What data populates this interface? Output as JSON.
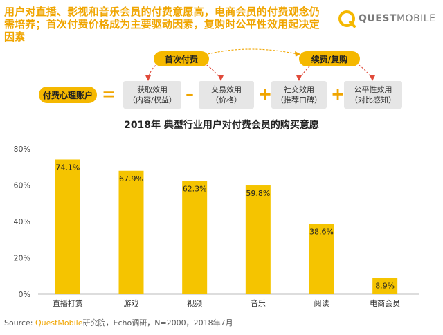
{
  "headline": "用户对直播、影视和音乐会员的付费意愿高，电商会员的付费观念仍需培养；首次付费价格成为主要驱动因素，复购时公平性效用起决定因素",
  "logo": {
    "brand_bold": "QUEST",
    "brand_rest": "MOBILE"
  },
  "equation": {
    "label": "付费心理账户",
    "first_pay": "首次付费",
    "renew": "续费/复购",
    "items": [
      {
        "line1": "获取效用",
        "line2": "（内容/权益）"
      },
      {
        "line1": "交易效用",
        "line2": "（价格）"
      },
      {
        "line1": "社交效用",
        "line2": "（推荐口碑）"
      },
      {
        "line1": "公平性效用",
        "line2": "（对比感知）"
      }
    ],
    "ops": [
      "=",
      "–",
      "+",
      "+"
    ]
  },
  "chart_data": {
    "type": "bar",
    "title": "2018年 典型行业用户对付费会员的购买意愿",
    "categories": [
      "直播打赏",
      "游戏",
      "视频",
      "音乐",
      "阅读",
      "电商会员"
    ],
    "values": [
      74.1,
      67.9,
      62.3,
      59.8,
      38.6,
      8.9
    ],
    "value_labels": [
      "74.1%",
      "67.9%",
      "62.3%",
      "59.8%",
      "38.6%",
      "8.9%"
    ],
    "yticks": [
      0,
      20,
      40,
      60,
      80
    ],
    "ytick_labels": [
      "0%",
      "20%",
      "40%",
      "60%",
      "80%"
    ],
    "ylim": [
      0,
      80
    ],
    "xlabel": "",
    "ylabel": "",
    "color": "#f5c400"
  },
  "source": {
    "prefix": "Source: ",
    "brand": "QuestMobile",
    "rest": "研究院，Echo调研，N=2000，2018年7月"
  }
}
